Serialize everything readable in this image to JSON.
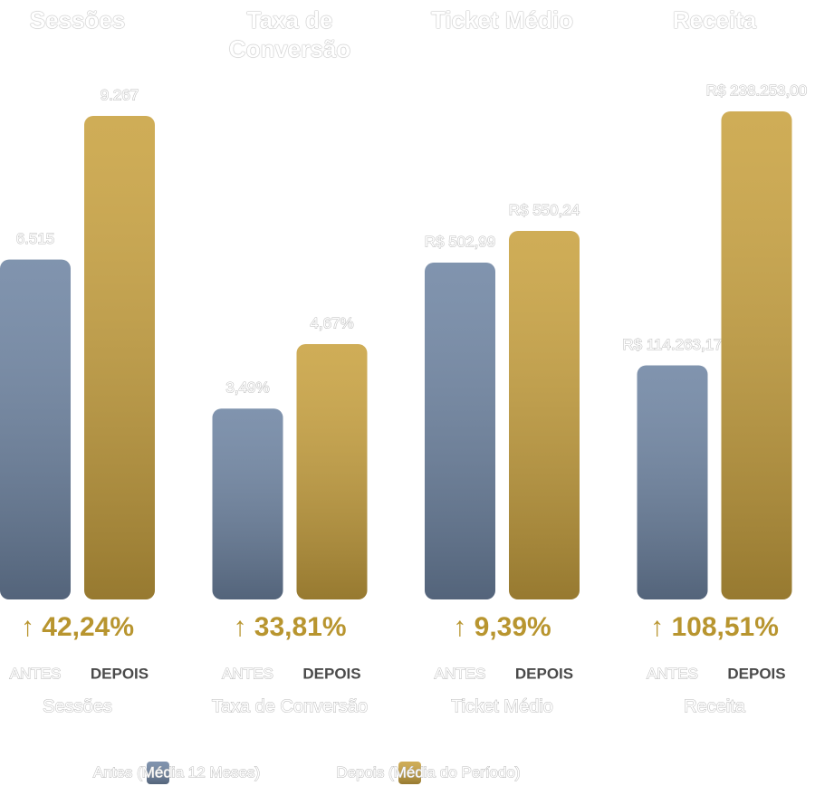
{
  "chart_data": [
    {
      "type": "bar",
      "title": "Sessões",
      "categories": [
        "ANTES",
        "DEPOIS"
      ],
      "values": [
        6515,
        9267
      ],
      "value_labels": [
        "6.515",
        "9.267"
      ],
      "colors": [
        "#6f85a3",
        "#c9a240"
      ],
      "change": "↑ 42,24%",
      "x_label": "Sessões"
    },
    {
      "type": "bar",
      "title": "Taxa de Conversão",
      "categories": [
        "ANTES",
        "DEPOIS"
      ],
      "values": [
        3.49,
        4.67
      ],
      "value_labels": [
        "3,49%",
        "4,67%"
      ],
      "colors": [
        "#6f85a3",
        "#c9a240"
      ],
      "change": "↑ 33,81%",
      "x_label": "Taxa de Conversão"
    },
    {
      "type": "bar",
      "title": "Ticket Médio",
      "categories": [
        "ANTES",
        "DEPOIS"
      ],
      "values": [
        502.99,
        550.24
      ],
      "value_labels": [
        "R$ 502,99",
        "R$ 550,24"
      ],
      "colors": [
        "#6f85a3",
        "#c9a240"
      ],
      "change": "↑ 9,39%",
      "x_label": "Ticket Médio"
    },
    {
      "type": "bar",
      "title": "Receita",
      "categories": [
        "ANTES",
        "DEPOIS"
      ],
      "values": [
        114263.17,
        238253.0
      ],
      "value_labels": [
        "R$ 114.263,17",
        "R$ 238.253,00"
      ],
      "colors": [
        "#6f85a3",
        "#c9a240"
      ],
      "change": "↑ 108,51%",
      "x_label": "Receita"
    }
  ],
  "legend": [
    {
      "name": "Antes (Média 12 Meses)",
      "color": "#6f85a3"
    },
    {
      "name": "Depois (Média do Período)",
      "color": "#c9a240"
    }
  ]
}
